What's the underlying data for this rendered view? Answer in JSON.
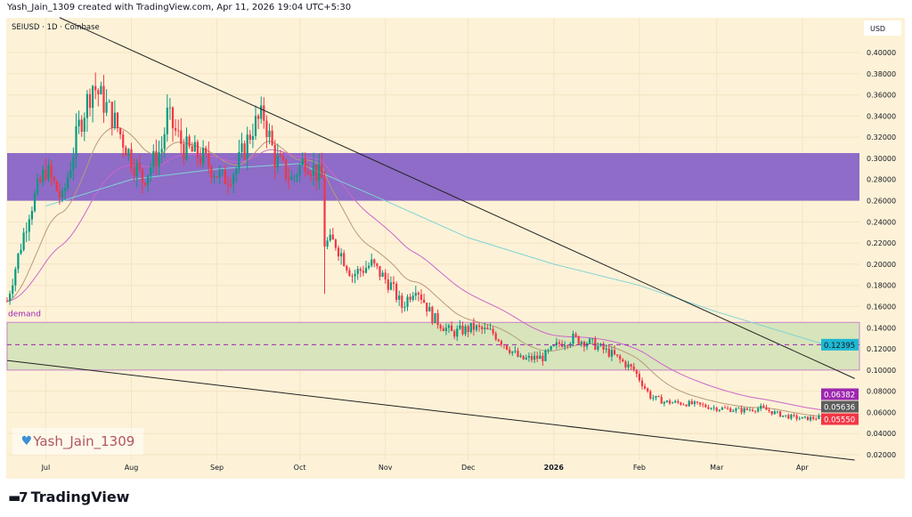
{
  "header": {
    "attribution": "Yash_Jain_1309 created with TradingView.com, Apr 11, 2026 19:04 UTC+5:30"
  },
  "symbol_label": "SEIUSD · 1D · Coinbase",
  "watermark": {
    "icon": "blue-heart-icon",
    "text": "Yash_Jain_1309"
  },
  "branding": {
    "logo_text": "TradingView"
  },
  "colors": {
    "background": "#fdf2d7",
    "up": "#089981",
    "down": "#f23645",
    "supply_zone": "#8e6cc7",
    "demand_zone": "#d8e4bb",
    "ma_short": "#b89a7a",
    "ma_mid": "#cc66cc",
    "ma_long": "#7fd3d6",
    "trendline": "#222222"
  },
  "chart_data": {
    "type": "candlestick",
    "title": "SEIUSD · 1D · Coinbase",
    "currency": "USD",
    "ylim": [
      0.01,
      0.42
    ],
    "y_ticks": [
      "0.02000",
      "0.04000",
      "0.06000",
      "0.08000",
      "0.10000",
      "0.12000",
      "0.14000",
      "0.16000",
      "0.18000",
      "0.20000",
      "0.22000",
      "0.24000",
      "0.26000",
      "0.28000",
      "0.30000",
      "0.32000",
      "0.34000",
      "0.36000",
      "0.38000",
      "0.40000"
    ],
    "x_ticks": [
      {
        "label": "Jul",
        "date": "2025-07-01"
      },
      {
        "label": "Aug",
        "date": "2025-08-01"
      },
      {
        "label": "Sep",
        "date": "2025-09-01"
      },
      {
        "label": "Oct",
        "date": "2025-10-01"
      },
      {
        "label": "Nov",
        "date": "2025-11-01"
      },
      {
        "label": "Dec",
        "date": "2025-12-01"
      },
      {
        "label": "2026",
        "date": "2026-01-01",
        "bold": true
      },
      {
        "label": "Feb",
        "date": "2026-02-01"
      },
      {
        "label": "Mar",
        "date": "2026-03-01"
      },
      {
        "label": "Apr",
        "date": "2026-04-01"
      }
    ],
    "xlim": [
      "2025-06-17",
      "2026-05-01"
    ],
    "close_path": [
      [
        "2025-06-17",
        0.165
      ],
      [
        "2025-06-25",
        0.25
      ],
      [
        "2025-07-01",
        0.29
      ],
      [
        "2025-07-07",
        0.26
      ],
      [
        "2025-07-13",
        0.33
      ],
      [
        "2025-07-18",
        0.37
      ],
      [
        "2025-07-25",
        0.34
      ],
      [
        "2025-08-01",
        0.3
      ],
      [
        "2025-08-05",
        0.28
      ],
      [
        "2025-08-12",
        0.31
      ],
      [
        "2025-08-14",
        0.34
      ],
      [
        "2025-08-20",
        0.31
      ],
      [
        "2025-08-27",
        0.3
      ],
      [
        "2025-09-03",
        0.28
      ],
      [
        "2025-09-08",
        0.29
      ],
      [
        "2025-09-14",
        0.33
      ],
      [
        "2025-09-18",
        0.34
      ],
      [
        "2025-09-22",
        0.3
      ],
      [
        "2025-09-28",
        0.28
      ],
      [
        "2025-10-03",
        0.3
      ],
      [
        "2025-10-09",
        0.28
      ],
      [
        "2025-10-10",
        0.22
      ],
      [
        "2025-10-14",
        0.22
      ],
      [
        "2025-10-20",
        0.19
      ],
      [
        "2025-10-27",
        0.2
      ],
      [
        "2025-11-03",
        0.18
      ],
      [
        "2025-11-07",
        0.16
      ],
      [
        "2025-11-12",
        0.18
      ],
      [
        "2025-11-18",
        0.15
      ],
      [
        "2025-11-25",
        0.135
      ],
      [
        "2025-12-03",
        0.14
      ],
      [
        "2025-12-10",
        0.135
      ],
      [
        "2025-12-14",
        0.125
      ],
      [
        "2025-12-20",
        0.11
      ],
      [
        "2025-12-28",
        0.112
      ],
      [
        "2026-01-03",
        0.125
      ],
      [
        "2026-01-08",
        0.13
      ],
      [
        "2026-01-15",
        0.125
      ],
      [
        "2026-01-22",
        0.115
      ],
      [
        "2026-01-30",
        0.1
      ],
      [
        "2026-02-05",
        0.075
      ],
      [
        "2026-02-10",
        0.07
      ],
      [
        "2026-02-20",
        0.068
      ],
      [
        "2026-03-01",
        0.064
      ],
      [
        "2026-03-10",
        0.062
      ],
      [
        "2026-03-17",
        0.064
      ],
      [
        "2026-03-25",
        0.057
      ],
      [
        "2026-04-01",
        0.054
      ],
      [
        "2026-04-11",
        0.0555
      ]
    ],
    "ma_long_path": [
      [
        "2025-07-01",
        0.255
      ],
      [
        "2025-08-01",
        0.28
      ],
      [
        "2025-09-01",
        0.29
      ],
      [
        "2025-10-01",
        0.295
      ],
      [
        "2025-11-01",
        0.26
      ],
      [
        "2025-12-01",
        0.225
      ],
      [
        "2026-01-01",
        0.2
      ],
      [
        "2026-02-01",
        0.18
      ],
      [
        "2026-03-01",
        0.155
      ],
      [
        "2026-04-08",
        0.125
      ]
    ],
    "zones": [
      {
        "name": "supply",
        "from": 0.26,
        "to": 0.305
      },
      {
        "name": "demand",
        "label": "demand",
        "from": 0.1,
        "to": 0.145
      }
    ],
    "trendlines": [
      {
        "name": "upper",
        "from": [
          "2025-07-06",
          0.433
        ],
        "to": [
          "2026-04-20",
          0.092
        ]
      },
      {
        "name": "lower",
        "from": [
          "2025-06-17",
          0.109
        ],
        "to": [
          "2026-04-20",
          0.015
        ]
      }
    ],
    "price_labels": [
      {
        "value": "0.12395",
        "color": "#1fb8d4",
        "dashed_line": true
      },
      {
        "value": "0.06382",
        "color": "#9c27b0"
      },
      {
        "value": "0.05636",
        "color": "#5d5d5d"
      },
      {
        "value": "0.05550",
        "color": "#f23645",
        "dotted_line": true
      }
    ]
  }
}
